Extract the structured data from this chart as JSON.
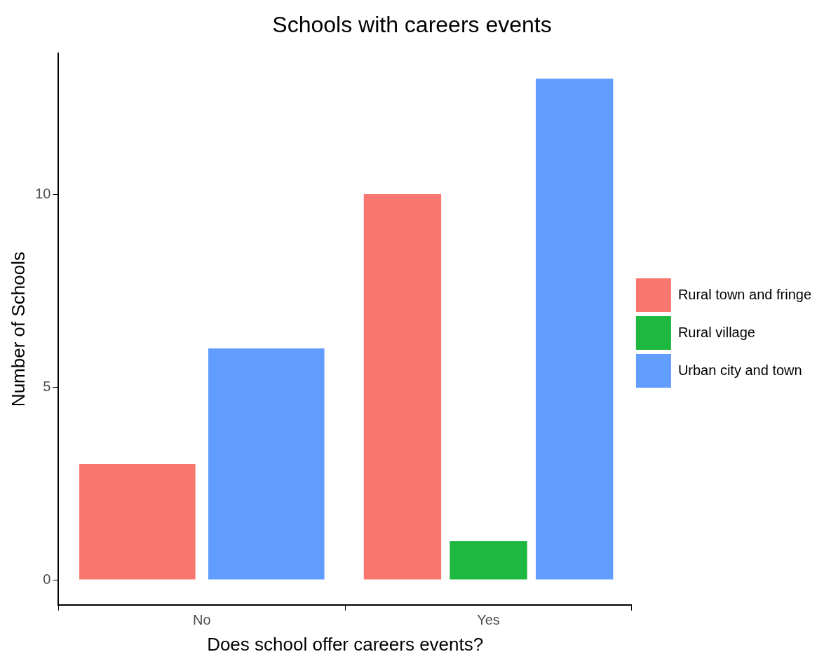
{
  "chart_data": {
    "type": "bar",
    "title": "Schools with careers events",
    "xlabel": "Does school offer careers events?",
    "ylabel": "Number of Schools",
    "categories": [
      "No",
      "Yes"
    ],
    "series": [
      {
        "name": "Rural town and fringe",
        "color": "#f8766d",
        "values": [
          3,
          10
        ]
      },
      {
        "name": "Rural village",
        "color": "#1db83f",
        "values": [
          null,
          1
        ]
      },
      {
        "name": "Urban city and town",
        "color": "#619cff",
        "values": [
          6,
          13
        ]
      }
    ],
    "ylim": [
      -0.65,
      13.65
    ],
    "yticks": [
      0,
      5,
      10
    ],
    "grid": false,
    "legend": "right"
  }
}
